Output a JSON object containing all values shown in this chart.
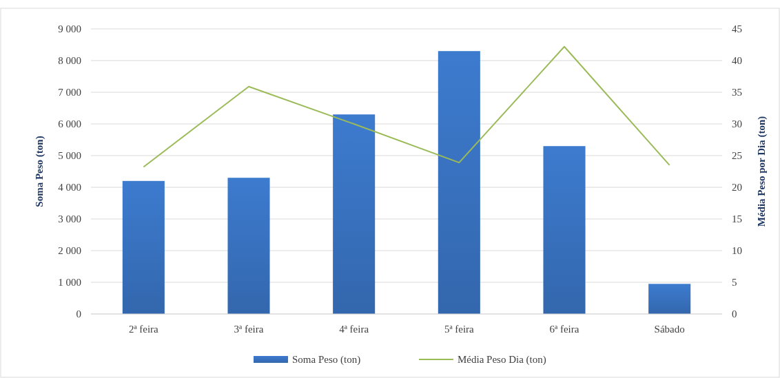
{
  "chart_data": {
    "type": "bar",
    "categories": [
      "2ª feira",
      "3ª feira",
      "4ª feira",
      "5ª feira",
      "6ª feira",
      "Sábado"
    ],
    "series": [
      {
        "name": "Soma Peso (ton)",
        "color": "#3a75c4",
        "values": [
          4200,
          4300,
          6300,
          8300,
          5300,
          950
        ]
      },
      {
        "name": "Média Peso Dia (ton)",
        "type": "line",
        "axis": "y2",
        "color": "#9bbb59",
        "values": [
          23.2,
          35.9,
          30.0,
          23.9,
          42.2,
          23.5
        ]
      }
    ],
    "ylabel": "Soma Peso (ton)",
    "y2label": "Média Peso por Dia (ton)",
    "ylim": [
      0,
      9000
    ],
    "yticks": [
      {
        "value": 0,
        "label": "0"
      },
      {
        "value": 1000,
        "label": "1 000"
      },
      {
        "value": 2000,
        "label": "2 000"
      },
      {
        "value": 3000,
        "label": "3 000"
      },
      {
        "value": 4000,
        "label": "4 000"
      },
      {
        "value": 5000,
        "label": "5 000"
      },
      {
        "value": 6000,
        "label": "6 000"
      },
      {
        "value": 7000,
        "label": "7 000"
      },
      {
        "value": 8000,
        "label": "8 000"
      },
      {
        "value": 9000,
        "label": "9 000"
      }
    ],
    "y2lim": [
      0,
      45
    ],
    "y2ticks": [
      0,
      5,
      10,
      15,
      20,
      25,
      30,
      35,
      40,
      45
    ],
    "grid": "y",
    "legend": "bottom",
    "marker": "none"
  }
}
